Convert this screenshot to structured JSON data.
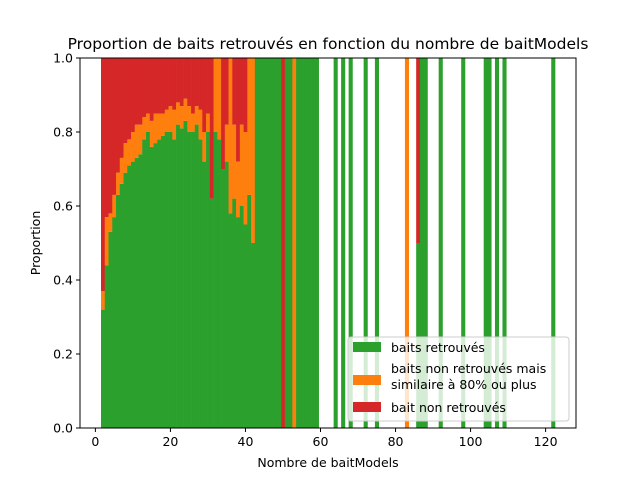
{
  "chart_data": {
    "type": "bar",
    "stacked": true,
    "title": "Proportion de baits retrouvés en fonction du nombre de baitModels",
    "xlabel": "Nombre de baitModels",
    "ylabel": "Proportion",
    "xlim": [
      -4.1,
      128.1
    ],
    "ylim": [
      0,
      1
    ],
    "xticks": [
      "0",
      "20",
      "40",
      "60",
      "80",
      "100",
      "120"
    ],
    "yticks": [
      "0.0",
      "0.2",
      "0.4",
      "0.6",
      "0.8",
      "1.0"
    ],
    "legend_position": "lower right",
    "series": [
      {
        "name": "baits retrouvés",
        "color": "#2ca02c"
      },
      {
        "name": "baits non retrouvés mais\nsimilaire à 80% ou plus",
        "color": "#ff7f0e"
      },
      {
        "name": "bait non retrouvés",
        "color": "#d62728"
      }
    ],
    "x": [
      2,
      3,
      4,
      5,
      6,
      7,
      8,
      9,
      10,
      11,
      12,
      13,
      14,
      15,
      16,
      17,
      18,
      19,
      20,
      21,
      22,
      23,
      24,
      25,
      26,
      27,
      28,
      29,
      30,
      31,
      32,
      33,
      34,
      35,
      36,
      37,
      38,
      39,
      40,
      41,
      42,
      43,
      44,
      45,
      46,
      47,
      48,
      49,
      50,
      51,
      52,
      53,
      54,
      55,
      56,
      57,
      58,
      59,
      64,
      66,
      68,
      72,
      75,
      83,
      86,
      87,
      88,
      92,
      98,
      104,
      105,
      107,
      109,
      122
    ],
    "found": [
      0.32,
      0.44,
      0.53,
      0.57,
      0.63,
      0.66,
      0.69,
      0.71,
      0.72,
      0.73,
      0.74,
      0.78,
      0.8,
      0.76,
      0.77,
      0.78,
      0.79,
      0.8,
      0.8,
      0.78,
      0.82,
      0.81,
      0.83,
      0.8,
      0.8,
      0.82,
      0.78,
      0.72,
      0.8,
      0.62,
      0.8,
      0.78,
      0.7,
      0.72,
      0.58,
      0.62,
      0.57,
      0.6,
      0.55,
      0.63,
      0.5,
      1.0,
      1.0,
      1.0,
      1.0,
      1.0,
      1.0,
      1.0,
      0,
      1.0,
      1.0,
      0,
      1.0,
      1.0,
      1.0,
      1.0,
      1.0,
      1.0,
      1.0,
      1.0,
      1.0,
      1.0,
      1.0,
      0,
      0.5,
      1.0,
      1.0,
      1.0,
      1.0,
      1.0,
      1.0,
      1.0,
      1.0,
      1.0
    ],
    "similar": [
      0.05,
      0.13,
      0.05,
      0.06,
      0.06,
      0.07,
      0.08,
      0.07,
      0.08,
      0.09,
      0.08,
      0.06,
      0.05,
      0.07,
      0.08,
      0.07,
      0.06,
      0.06,
      0.07,
      0.08,
      0.06,
      0.06,
      0.06,
      0.07,
      0.05,
      0.05,
      0.08,
      0.08,
      0.05,
      0,
      0.2,
      0.22,
      0,
      0.1,
      0.42,
      0.2,
      0.15,
      0.22,
      0.25,
      0.37,
      0.5,
      0,
      0,
      0,
      0,
      0,
      0,
      0,
      0,
      0,
      0,
      1.0,
      0,
      0,
      0,
      0,
      0,
      0,
      0,
      0,
      0,
      0,
      0,
      1.0,
      0,
      0,
      0,
      0,
      0,
      0,
      0,
      0,
      0,
      0
    ],
    "not_found": [
      0.63,
      0.43,
      0.42,
      0.37,
      0.31,
      0.27,
      0.23,
      0.22,
      0.2,
      0.18,
      0.18,
      0.16,
      0.15,
      0.17,
      0.15,
      0.15,
      0.15,
      0.14,
      0.13,
      0.14,
      0.12,
      0.13,
      0.11,
      0.13,
      0.15,
      0.13,
      0.14,
      0.2,
      0.15,
      0.38,
      0,
      0,
      0.3,
      0.18,
      0,
      0.18,
      0.28,
      0.18,
      0.2,
      0,
      0,
      0,
      0,
      0,
      0,
      0,
      0,
      0,
      1.0,
      0,
      0,
      0,
      0,
      0,
      0,
      0,
      0,
      0,
      0,
      0,
      0,
      0,
      0,
      0,
      0.5,
      0,
      0,
      0,
      0,
      0,
      0,
      0,
      0,
      0
    ]
  }
}
